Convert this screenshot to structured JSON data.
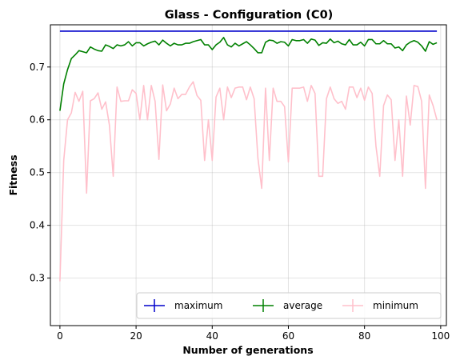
{
  "chart_data": {
    "type": "line",
    "title": "Glass - Configuration (C0)",
    "xlabel": "Number of generations",
    "ylabel": "Fitness",
    "xlim": [
      -2.5,
      101.5
    ],
    "ylim": [
      0.21,
      0.78
    ],
    "xticks": [
      0,
      20,
      40,
      60,
      80,
      100
    ],
    "yticks": [
      0.3,
      0.4,
      0.5,
      0.6,
      0.7
    ],
    "ytick_labels": [
      "0.3",
      "0.4",
      "0.5",
      "0.6",
      "0.7"
    ],
    "grid": true,
    "legend_position": "lower-right",
    "x": [
      0,
      1,
      2,
      3,
      4,
      5,
      6,
      7,
      8,
      9,
      10,
      11,
      12,
      13,
      14,
      15,
      16,
      17,
      18,
      19,
      20,
      21,
      22,
      23,
      24,
      25,
      26,
      27,
      28,
      29,
      30,
      31,
      32,
      33,
      34,
      35,
      36,
      37,
      38,
      39,
      40,
      41,
      42,
      43,
      44,
      45,
      46,
      47,
      48,
      49,
      50,
      51,
      52,
      53,
      54,
      55,
      56,
      57,
      58,
      59,
      60,
      61,
      62,
      63,
      64,
      65,
      66,
      67,
      68,
      69,
      70,
      71,
      72,
      73,
      74,
      75,
      76,
      77,
      78,
      79,
      80,
      81,
      82,
      83,
      84,
      85,
      86,
      87,
      88,
      89,
      90,
      91,
      92,
      93,
      94,
      95,
      96,
      97,
      98,
      99
    ],
    "series": [
      {
        "name": "maximum",
        "color": "#0000cc",
        "values": [
          0.768,
          0.768,
          0.768,
          0.768,
          0.768,
          0.768,
          0.768,
          0.768,
          0.768,
          0.768,
          0.768,
          0.768,
          0.768,
          0.768,
          0.768,
          0.768,
          0.768,
          0.768,
          0.768,
          0.768,
          0.768,
          0.768,
          0.768,
          0.768,
          0.768,
          0.768,
          0.768,
          0.768,
          0.768,
          0.768,
          0.768,
          0.768,
          0.768,
          0.768,
          0.768,
          0.768,
          0.768,
          0.768,
          0.768,
          0.768,
          0.768,
          0.768,
          0.768,
          0.768,
          0.768,
          0.768,
          0.768,
          0.768,
          0.768,
          0.768,
          0.768,
          0.768,
          0.768,
          0.768,
          0.768,
          0.768,
          0.768,
          0.768,
          0.768,
          0.768,
          0.768,
          0.768,
          0.768,
          0.768,
          0.768,
          0.768,
          0.768,
          0.768,
          0.768,
          0.768,
          0.768,
          0.768,
          0.768,
          0.768,
          0.768,
          0.768,
          0.768,
          0.768,
          0.768,
          0.768,
          0.768,
          0.768,
          0.768,
          0.768,
          0.768,
          0.768,
          0.768,
          0.768,
          0.768,
          0.768,
          0.768,
          0.768,
          0.768,
          0.768,
          0.768,
          0.768,
          0.768,
          0.768,
          0.768,
          0.768
        ]
      },
      {
        "name": "average",
        "color": "#008000",
        "values": [
          0.617,
          0.668,
          0.695,
          0.716,
          0.723,
          0.731,
          0.729,
          0.727,
          0.738,
          0.734,
          0.731,
          0.73,
          0.742,
          0.739,
          0.735,
          0.742,
          0.74,
          0.742,
          0.748,
          0.74,
          0.746,
          0.746,
          0.74,
          0.744,
          0.747,
          0.749,
          0.742,
          0.751,
          0.745,
          0.74,
          0.745,
          0.742,
          0.742,
          0.745,
          0.745,
          0.748,
          0.75,
          0.752,
          0.742,
          0.742,
          0.733,
          0.742,
          0.747,
          0.756,
          0.742,
          0.738,
          0.745,
          0.74,
          0.744,
          0.748,
          0.742,
          0.735,
          0.727,
          0.727,
          0.747,
          0.751,
          0.75,
          0.745,
          0.748,
          0.747,
          0.74,
          0.752,
          0.75,
          0.75,
          0.752,
          0.745,
          0.753,
          0.751,
          0.741,
          0.746,
          0.745,
          0.753,
          0.746,
          0.749,
          0.744,
          0.742,
          0.752,
          0.742,
          0.742,
          0.747,
          0.74,
          0.752,
          0.752,
          0.744,
          0.744,
          0.75,
          0.744,
          0.744,
          0.736,
          0.738,
          0.731,
          0.742,
          0.747,
          0.75,
          0.747,
          0.74,
          0.73,
          0.748,
          0.743,
          0.746
        ]
      },
      {
        "name": "minimum",
        "color": "#ffc0cb",
        "values": [
          0.294,
          0.523,
          0.6,
          0.613,
          0.652,
          0.635,
          0.654,
          0.461,
          0.636,
          0.64,
          0.651,
          0.62,
          0.634,
          0.59,
          0.493,
          0.662,
          0.635,
          0.636,
          0.636,
          0.657,
          0.65,
          0.6,
          0.665,
          0.6,
          0.665,
          0.635,
          0.525,
          0.666,
          0.617,
          0.63,
          0.66,
          0.64,
          0.648,
          0.648,
          0.662,
          0.672,
          0.646,
          0.637,
          0.523,
          0.6,
          0.523,
          0.643,
          0.66,
          0.6,
          0.662,
          0.642,
          0.66,
          0.662,
          0.662,
          0.638,
          0.662,
          0.64,
          0.527,
          0.47,
          0.66,
          0.523,
          0.66,
          0.635,
          0.635,
          0.625,
          0.52,
          0.66,
          0.66,
          0.66,
          0.662,
          0.635,
          0.665,
          0.65,
          0.493,
          0.493,
          0.64,
          0.662,
          0.64,
          0.631,
          0.635,
          0.62,
          0.662,
          0.662,
          0.642,
          0.66,
          0.637,
          0.662,
          0.65,
          0.55,
          0.493,
          0.627,
          0.647,
          0.638,
          0.523,
          0.6,
          0.493,
          0.645,
          0.59,
          0.665,
          0.663,
          0.635,
          0.47,
          0.647,
          0.627,
          0.6
        ]
      }
    ]
  }
}
